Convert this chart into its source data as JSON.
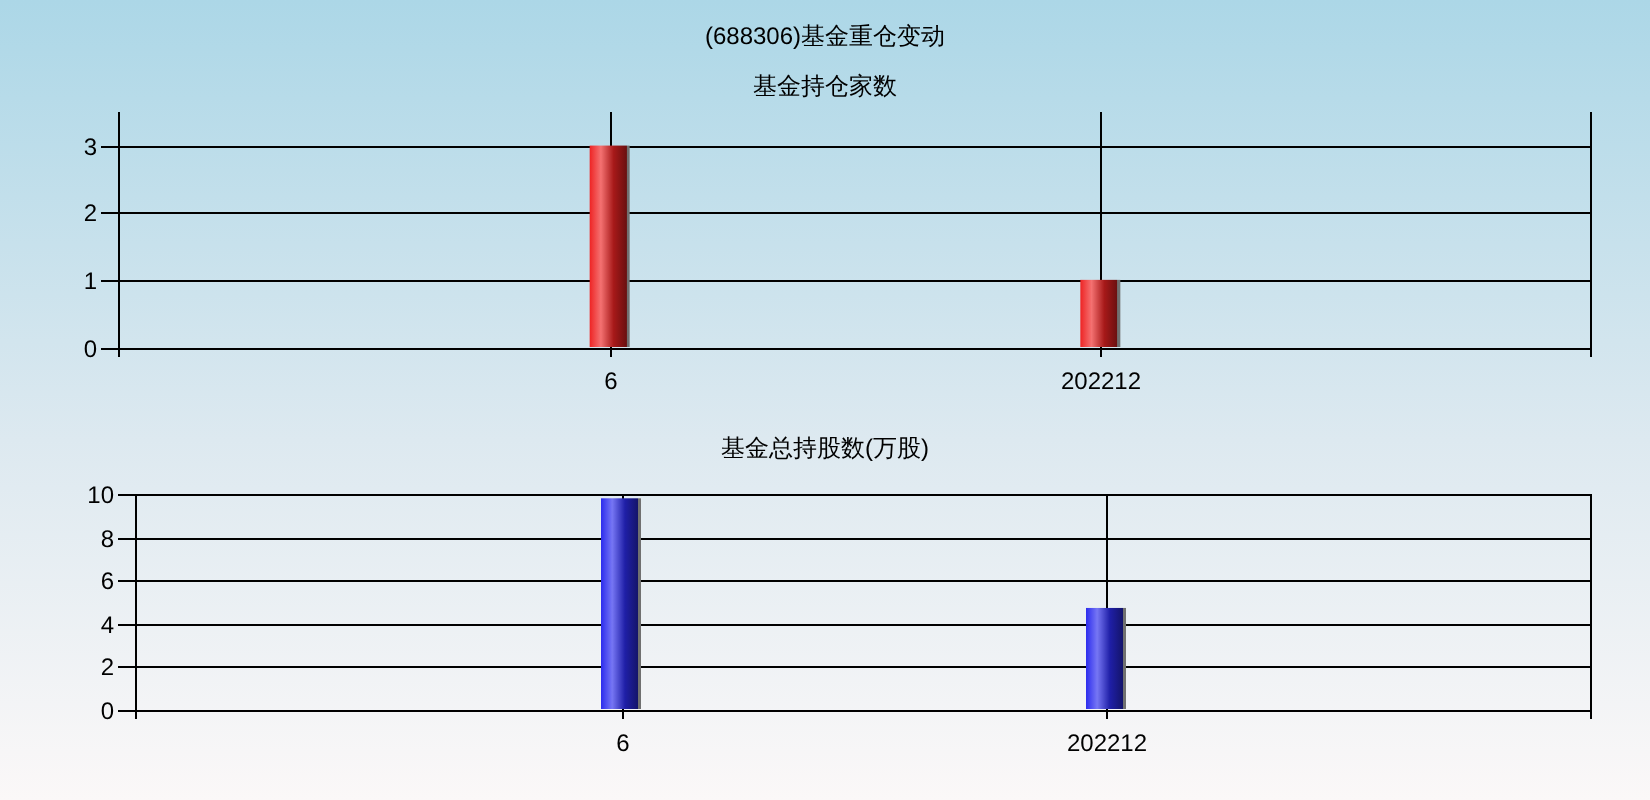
{
  "chart_data": [
    {
      "type": "bar",
      "title": "(688306)基金重仓变动",
      "subtitle": "基金持仓家数",
      "categories": [
        "6",
        "202212"
      ],
      "values": [
        3,
        1
      ],
      "color": "#ee2424",
      "ylim": [
        0,
        3.5
      ],
      "yticks": [
        0,
        1,
        2,
        3
      ],
      "grid": true
    },
    {
      "type": "bar",
      "title": "基金总持股数(万股)",
      "categories": [
        "6",
        "202212"
      ],
      "values": [
        9.8,
        4.7
      ],
      "color": "#2c2cee",
      "ylim": [
        0,
        10
      ],
      "yticks": [
        0,
        2,
        4,
        6,
        8,
        10
      ],
      "grid": true
    }
  ]
}
